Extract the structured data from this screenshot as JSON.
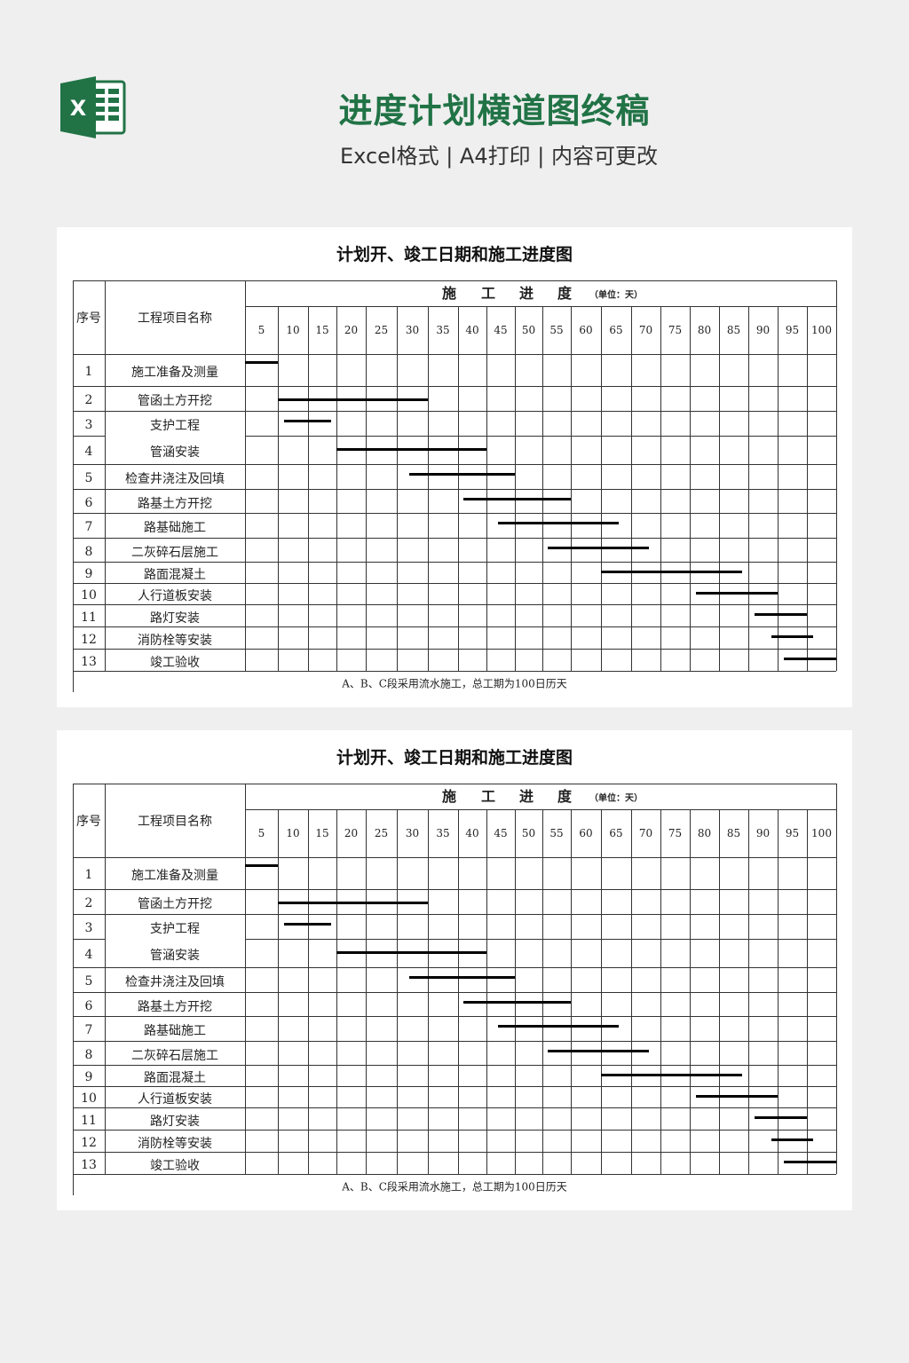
{
  "header": {
    "title": "进度计划横道图终稿",
    "subtitle": "Excel格式 | A4打印 | 内容可更改",
    "logo_letter": "X",
    "accent_color": "#217346"
  },
  "sheet": {
    "title": "计划开、竣工日期和施工进度图",
    "col_seq": "序号",
    "col_name": "工程项目名称",
    "progress_header": [
      "施",
      "工",
      "进",
      "度"
    ],
    "unit_label": "（单位：天）",
    "footer_note": "A、B、C段采用流水施工，总工期为100日历天"
  },
  "chart_data": {
    "type": "gantt",
    "x_unit": "天",
    "xlim": [
      0,
      100
    ],
    "ticks": [
      "5",
      "10",
      "15",
      "20",
      "25",
      "30",
      "35",
      "40",
      "45",
      "50",
      "55",
      "60",
      "65",
      "70",
      "75",
      "80",
      "85",
      "90",
      "95",
      "100"
    ],
    "tasks": [
      {
        "seq": "1",
        "name": "施工准备及测量",
        "start": 0,
        "end": 5
      },
      {
        "seq": "2",
        "name": "管函土方开挖",
        "start": 5,
        "end": 30
      },
      {
        "seq": "3",
        "name": "支护工程",
        "start": 6,
        "end": 14
      },
      {
        "seq": "4",
        "name": "管涵安装",
        "start": 15,
        "end": 40
      },
      {
        "seq": "5",
        "name": "检查井浇注及回填",
        "start": 27,
        "end": 45
      },
      {
        "seq": "6",
        "name": "路基土方开挖",
        "start": 36,
        "end": 55
      },
      {
        "seq": "7",
        "name": "路基础施工",
        "start": 42,
        "end": 63
      },
      {
        "seq": "8",
        "name": "二灰碎石层施工",
        "start": 51,
        "end": 68
      },
      {
        "seq": "9",
        "name": "路面混凝土",
        "start": 60,
        "end": 84
      },
      {
        "seq": "10",
        "name": "人行道板安装",
        "start": 76,
        "end": 90
      },
      {
        "seq": "11",
        "name": "路灯安装",
        "start": 86,
        "end": 95
      },
      {
        "seq": "12",
        "name": "消防栓等安装",
        "start": 89,
        "end": 96
      },
      {
        "seq": "13",
        "name": "竣工验收",
        "start": 91,
        "end": 100
      }
    ]
  }
}
